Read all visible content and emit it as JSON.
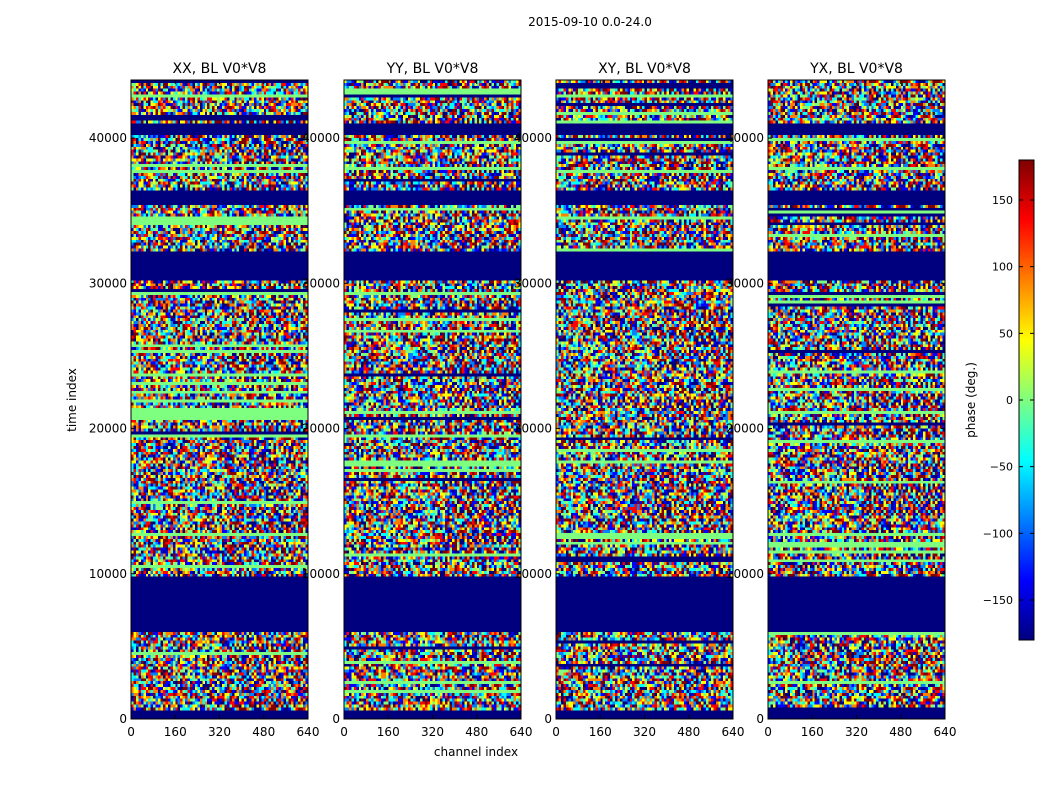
{
  "figure_title": "2015-09-10 0.0-24.0",
  "xlabel": "channel index",
  "ylabel": "time index",
  "colorbar_label": "phase (deg.)",
  "colormap": [
    "#00007f",
    "#0000ff",
    "#007fff",
    "#00ffff",
    "#7fff7f",
    "#ffff00",
    "#ff7f00",
    "#ff0000",
    "#7f0000"
  ],
  "chart_data": {
    "type": "heatmap",
    "title": "2015-09-10 0.0-24.0",
    "xlabel": "channel index",
    "ylabel": "time index",
    "xlim": [
      0,
      640
    ],
    "ylim": [
      0,
      44000
    ],
    "xticks": [
      0,
      160,
      320,
      480,
      640
    ],
    "yticks": [
      0,
      10000,
      20000,
      30000,
      40000
    ],
    "colorbar": {
      "label": "phase (deg.)",
      "range": [
        -180,
        180
      ],
      "ticks": [
        -150,
        -100,
        -50,
        0,
        50,
        100,
        150
      ]
    },
    "panels": [
      {
        "title": "XX, BL V0*V8"
      },
      {
        "title": "YY, BL V0*V8"
      },
      {
        "title": "XY, BL V0*V8"
      },
      {
        "title": "YX, BL V0*V8"
      }
    ],
    "masked_time_ranges": [
      [
        0,
        500
      ],
      [
        6000,
        9300
      ],
      [
        9500,
        9800
      ],
      [
        30300,
        32200
      ],
      [
        35500,
        36300
      ],
      [
        40300,
        41000
      ]
    ]
  }
}
